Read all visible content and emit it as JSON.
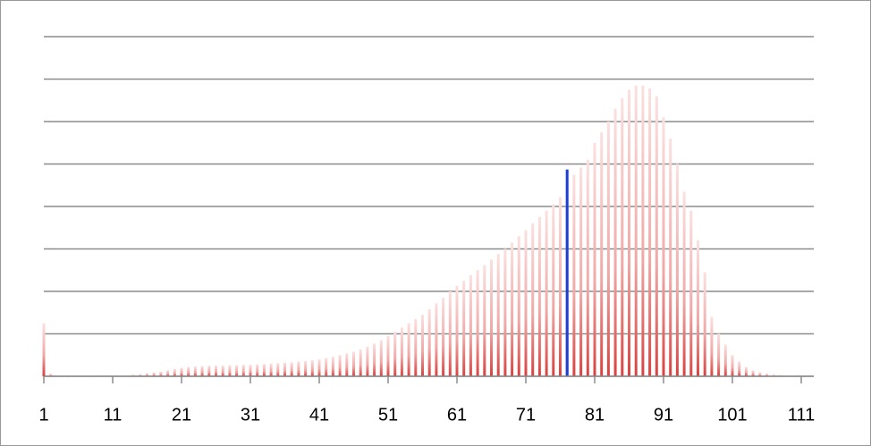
{
  "chart_data": {
    "type": "bar",
    "categories": [
      "1",
      null,
      null,
      null,
      null,
      null,
      null,
      null,
      null,
      null,
      "11",
      null,
      null,
      null,
      null,
      null,
      null,
      null,
      null,
      null,
      "21",
      null,
      null,
      null,
      null,
      null,
      null,
      null,
      null,
      null,
      "31",
      null,
      null,
      null,
      null,
      null,
      null,
      null,
      null,
      null,
      "41",
      null,
      null,
      null,
      null,
      null,
      null,
      null,
      null,
      null,
      "51",
      null,
      null,
      null,
      null,
      null,
      null,
      null,
      null,
      null,
      "61",
      null,
      null,
      null,
      null,
      null,
      null,
      null,
      null,
      null,
      "71",
      null,
      null,
      null,
      null,
      null,
      null,
      null,
      null,
      null,
      "81",
      null,
      null,
      null,
      null,
      null,
      null,
      null,
      null,
      null,
      "91",
      null,
      null,
      null,
      null,
      null,
      null,
      null,
      null,
      null,
      "101",
      null,
      null,
      null,
      null,
      null,
      null,
      null,
      null,
      null,
      "111",
      null
    ],
    "series": [
      {
        "color": "#d9413f",
        "values": [
          1.25,
          0.06,
          0.02,
          0.02,
          0.02,
          0.02,
          0.02,
          0.02,
          0.02,
          0.02,
          0.02,
          0.02,
          0.02,
          0.04,
          0.05,
          0.07,
          0.09,
          0.11,
          0.14,
          0.17,
          0.2,
          0.22,
          0.23,
          0.24,
          0.25,
          0.25,
          0.25,
          0.26,
          0.26,
          0.27,
          0.27,
          0.28,
          0.29,
          0.3,
          0.31,
          0.32,
          0.33,
          0.35,
          0.36,
          0.38,
          0.4,
          0.43,
          0.46,
          0.5,
          0.54,
          0.58,
          0.63,
          0.7,
          0.77,
          0.85,
          0.95,
          1.05,
          1.15,
          1.25,
          1.35,
          1.45,
          1.58,
          1.72,
          1.85,
          2.0,
          2.13,
          2.25,
          2.38,
          2.5,
          2.62,
          2.75,
          2.88,
          3.0,
          3.15,
          3.3,
          3.44,
          3.6,
          3.75,
          3.9,
          4.05,
          4.22,
          4.55,
          4.75,
          4.92,
          5.1,
          5.5,
          5.75,
          6.0,
          6.3,
          6.55,
          6.75,
          6.85,
          6.85,
          6.78,
          6.6,
          6.1,
          5.6,
          5.0,
          4.35,
          3.9,
          3.2,
          2.45,
          1.4,
          1.0,
          0.75,
          0.5,
          0.35,
          0.22,
          0.14,
          0.09,
          0.06,
          0.04,
          0.03,
          0.02,
          0.02,
          0.01,
          0.01
        ]
      },
      {
        "color": "#1a3fd6",
        "values": [
          null,
          null,
          null,
          null,
          null,
          null,
          null,
          null,
          null,
          null,
          null,
          null,
          null,
          null,
          null,
          null,
          null,
          null,
          null,
          null,
          null,
          null,
          null,
          null,
          null,
          null,
          null,
          null,
          null,
          null,
          null,
          null,
          null,
          null,
          null,
          null,
          null,
          null,
          null,
          null,
          null,
          null,
          null,
          null,
          null,
          null,
          null,
          null,
          null,
          null,
          null,
          null,
          null,
          null,
          null,
          null,
          null,
          null,
          null,
          null,
          null,
          null,
          null,
          null,
          null,
          null,
          null,
          null,
          null,
          null,
          null,
          null,
          null,
          null,
          null,
          null,
          4.87,
          null,
          null,
          null,
          null,
          null,
          null,
          null,
          null,
          null,
          null,
          null,
          null,
          null,
          null,
          null,
          null,
          null,
          null,
          null,
          null,
          null,
          null,
          null,
          null,
          null,
          null,
          null,
          null,
          null,
          null,
          null,
          null,
          null,
          null,
          null
        ]
      }
    ],
    "ylim": [
      0,
      8
    ],
    "yticks": [
      0,
      1,
      2,
      3,
      4,
      5,
      6,
      7,
      8
    ],
    "show_ytick_labels": false,
    "grid": true
  }
}
